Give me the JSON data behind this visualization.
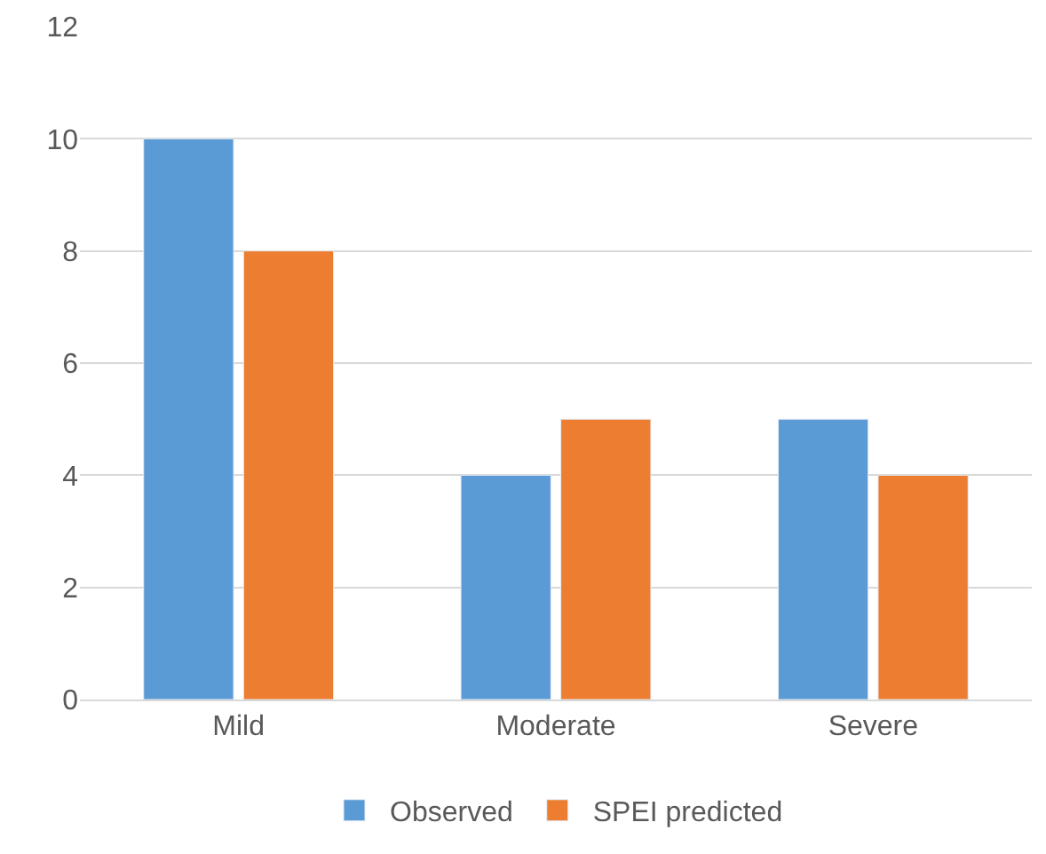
{
  "chart_data": {
    "type": "bar",
    "categories": [
      "Mild",
      "Moderate",
      "Severe"
    ],
    "series": [
      {
        "name": "Observed",
        "color": "#5b9bd5",
        "values": [
          10,
          4,
          5
        ]
      },
      {
        "name": "SPEI predicted",
        "color": "#ed7d31",
        "values": [
          8,
          5,
          4
        ]
      }
    ],
    "ylim": [
      0,
      12
    ],
    "yticks": [
      0,
      2,
      4,
      6,
      8,
      10,
      12
    ],
    "grid": "y",
    "legend": "bottom"
  }
}
